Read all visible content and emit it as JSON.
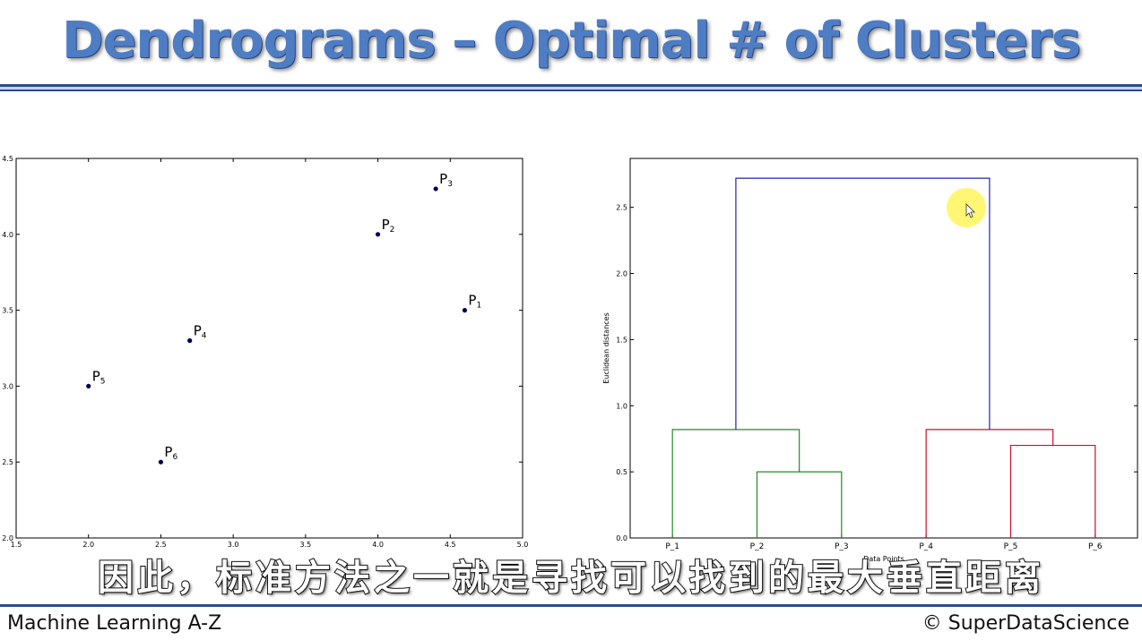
{
  "slide": {
    "title": "Dendrograms – Optimal # of Clusters",
    "subtitle": "因此，标准方法之一就是寻找可以找到的最大垂直距离",
    "footer_left": "Machine Learning A-Z",
    "footer_right": "© SuperDataScience"
  },
  "colors": {
    "title": "#4f7dc3",
    "rule": "#2b4c8c",
    "point": "#000055",
    "link_top": "#2222aa",
    "cluster_green": "#228b22",
    "cluster_red": "#c8102e",
    "cursor_highlight": "#ffee00"
  },
  "chart_data": [
    {
      "type": "scatter",
      "title": "",
      "xlabel": "",
      "ylabel": "",
      "xlim": [
        1.5,
        5.0
      ],
      "ylim": [
        2.0,
        4.5
      ],
      "xticks": [
        "1.5",
        "2.0",
        "2.5",
        "3.0",
        "3.5",
        "4.0",
        "4.5",
        "5.0"
      ],
      "yticks": [
        "2.0",
        "2.5",
        "3.0",
        "3.5",
        "4.0",
        "4.5"
      ],
      "points": [
        {
          "label": "P",
          "sub": "1",
          "x": 4.6,
          "y": 3.5
        },
        {
          "label": "P",
          "sub": "2",
          "x": 4.0,
          "y": 4.0
        },
        {
          "label": "P",
          "sub": "3",
          "x": 4.4,
          "y": 4.3
        },
        {
          "label": "P",
          "sub": "4",
          "x": 2.7,
          "y": 3.3
        },
        {
          "label": "P",
          "sub": "5",
          "x": 2.0,
          "y": 3.0
        },
        {
          "label": "P",
          "sub": "6",
          "x": 2.5,
          "y": 2.5
        }
      ],
      "grid": false
    },
    {
      "type": "dendrogram",
      "title": "",
      "xlabel": "Data Points",
      "ylabel": "Euclidean distances",
      "ylim": [
        0,
        2.87
      ],
      "yticks": [
        "0.0",
        "0.5",
        "1.0",
        "1.5",
        "2.0",
        "2.5"
      ],
      "leaves": [
        "P_1",
        "P_2",
        "P_3",
        "P_4",
        "P_5",
        "P_6"
      ],
      "links": [
        {
          "a": 1,
          "b": 2,
          "height": 0.5,
          "color": "cluster_green"
        },
        {
          "a": 0,
          "b": "1-2",
          "height": 0.82,
          "color": "cluster_green"
        },
        {
          "a": 4,
          "b": 5,
          "height": 0.7,
          "color": "cluster_red"
        },
        {
          "a": 3,
          "b": "4-5",
          "height": 0.82,
          "color": "cluster_red"
        },
        {
          "a": "0-2",
          "b": "3-5",
          "height": 2.72,
          "color": "link_top"
        }
      ],
      "grid": false
    }
  ]
}
